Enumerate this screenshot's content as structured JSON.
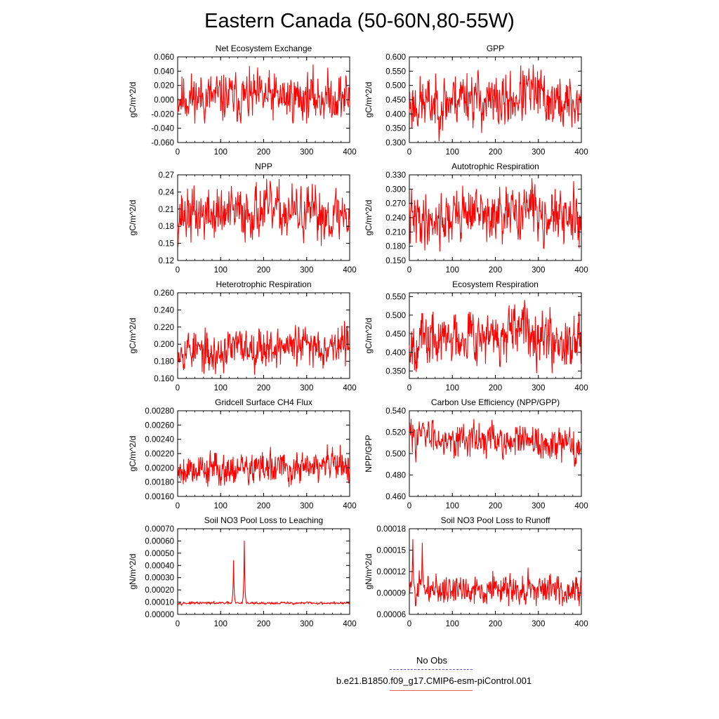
{
  "title": "Eastern Canada (50-60N,80-55W)",
  "legend": {
    "entries": [
      {
        "name": "No Obs",
        "color": "#5a5ae0",
        "style": "dashed"
      },
      {
        "name": "b.e21.B1850.f09_g17.CMIP6-esm-piControl.001",
        "color": "#e06060",
        "style": "solid"
      }
    ]
  },
  "series_color": "#ff0000",
  "chart_data": [
    {
      "type": "line",
      "title": "Net Ecosystem Exchange",
      "ylabel": "gC/m^2/d",
      "xlim": [
        0,
        400
      ],
      "ylim": [
        -0.06,
        0.06
      ],
      "xticks": [
        0,
        100,
        200,
        300,
        400
      ],
      "xticklabels": [
        "0",
        "100",
        "200",
        "300",
        "400"
      ],
      "yticks": [
        -0.06,
        -0.04,
        -0.02,
        0,
        0.02,
        0.04,
        0.06
      ],
      "yticklabels": [
        "-0.060",
        "-0.040",
        "-0.020",
        "0.000",
        "0.020",
        "0.040",
        "0.060"
      ],
      "pattern": {
        "base": 0.003,
        "trend": 0,
        "bumps": [],
        "noise": 0.016,
        "clampMin": -0.033,
        "clampMax": 0.058,
        "seed": 11
      }
    },
    {
      "type": "line",
      "title": "GPP",
      "ylabel": "gC/m^2/d",
      "xlim": [
        0,
        400
      ],
      "ylim": [
        0.3,
        0.6
      ],
      "xticks": [
        0,
        100,
        200,
        300,
        400
      ],
      "xticklabels": [
        "0",
        "100",
        "200",
        "300",
        "400"
      ],
      "yticks": [
        0.3,
        0.35,
        0.4,
        0.45,
        0.5,
        0.55,
        0.6
      ],
      "yticklabels": [
        "0.300",
        "0.350",
        "0.400",
        "0.450",
        "0.500",
        "0.550",
        "0.600"
      ],
      "pattern": {
        "base": 0.435,
        "trend": 0,
        "bumps": [
          [
            130,
            35,
            0.035
          ],
          [
            280,
            40,
            0.04
          ]
        ],
        "noise": 0.045,
        "clampMin": 0.305,
        "clampMax": 0.578,
        "seed": 23
      }
    },
    {
      "type": "line",
      "title": "NPP",
      "ylabel": "gC/m^2/d",
      "xlim": [
        0,
        400
      ],
      "ylim": [
        0.12,
        0.27
      ],
      "xticks": [
        0,
        100,
        200,
        300,
        400
      ],
      "xticklabels": [
        "0",
        "100",
        "200",
        "300",
        "400"
      ],
      "yticks": [
        0.12,
        0.15,
        0.18,
        0.21,
        0.24,
        0.27
      ],
      "yticklabels": [
        "0.12",
        "0.15",
        "0.18",
        "0.21",
        "0.24",
        "0.27"
      ],
      "pattern": {
        "base": 0.2,
        "trend": 0,
        "bumps": [
          [
            200,
            60,
            0.008
          ]
        ],
        "noise": 0.022,
        "clampMin": 0.135,
        "clampMax": 0.262,
        "seed": 37
      }
    },
    {
      "type": "line",
      "title": "Autotrophic Respiration",
      "ylabel": "gC/m^2/d",
      "xlim": [
        0,
        400
      ],
      "ylim": [
        0.15,
        0.33
      ],
      "xticks": [
        0,
        100,
        200,
        300,
        400
      ],
      "xticklabels": [
        "0",
        "100",
        "200",
        "300",
        "400"
      ],
      "yticks": [
        0.15,
        0.18,
        0.21,
        0.24,
        0.27,
        0.3,
        0.33
      ],
      "yticklabels": [
        "0.150",
        "0.180",
        "0.210",
        "0.240",
        "0.270",
        "0.300",
        "0.330"
      ],
      "pattern": {
        "base": 0.236,
        "trend": 0,
        "bumps": [
          [
            140,
            35,
            0.02
          ],
          [
            280,
            40,
            0.025
          ]
        ],
        "noise": 0.026,
        "clampMin": 0.165,
        "clampMax": 0.322,
        "seed": 41
      }
    },
    {
      "type": "line",
      "title": "Heterotrophic Respiration",
      "ylabel": "gC/m^2/d",
      "xlim": [
        0,
        400
      ],
      "ylim": [
        0.16,
        0.26
      ],
      "xticks": [
        0,
        100,
        200,
        300,
        400
      ],
      "xticklabels": [
        "0",
        "100",
        "200",
        "300",
        "400"
      ],
      "yticks": [
        0.16,
        0.18,
        0.2,
        0.22,
        0.24,
        0.26
      ],
      "yticklabels": [
        "0.160",
        "0.180",
        "0.200",
        "0.220",
        "0.240",
        "0.260"
      ],
      "pattern": {
        "base": 0.197,
        "trend": 1e-05,
        "bumps": [
          [
            80,
            30,
            -0.01
          ]
        ],
        "noise": 0.011,
        "clampMin": 0.161,
        "clampMax": 0.24,
        "seed": 53
      }
    },
    {
      "type": "line",
      "title": "Ecosystem Respiration",
      "ylabel": "gC/m^2/d",
      "xlim": [
        0,
        400
      ],
      "ylim": [
        0.33,
        0.56
      ],
      "xticks": [
        0,
        100,
        200,
        300,
        400
      ],
      "xticklabels": [
        "0",
        "100",
        "200",
        "300",
        "400"
      ],
      "yticks": [
        0.35,
        0.4,
        0.45,
        0.5,
        0.55
      ],
      "yticklabels": [
        "0.350",
        "0.400",
        "0.450",
        "0.500",
        "0.550"
      ],
      "pattern": {
        "base": 0.432,
        "trend": 0,
        "bumps": [
          [
            140,
            35,
            0.025
          ],
          [
            280,
            40,
            0.035
          ]
        ],
        "noise": 0.034,
        "clampMin": 0.345,
        "clampMax": 0.54,
        "seed": 67
      }
    },
    {
      "type": "line",
      "title": "Gridcell Surface CH4 Flux",
      "ylabel": "gC/m^2/d",
      "xlim": [
        0,
        400
      ],
      "ylim": [
        0.0016,
        0.0028
      ],
      "xticks": [
        0,
        100,
        200,
        300,
        400
      ],
      "xticklabels": [
        "0",
        "100",
        "200",
        "300",
        "400"
      ],
      "yticks": [
        0.0016,
        0.0018,
        0.002,
        0.0022,
        0.0024,
        0.0026,
        0.0028
      ],
      "yticklabels": [
        "0.00160",
        "0.00180",
        "0.00200",
        "0.00220",
        "0.00240",
        "0.00260",
        "0.00280"
      ],
      "pattern": {
        "base": 0.00199,
        "trend": 0,
        "bumps": [
          [
            360,
            50,
            5e-05
          ]
        ],
        "noise": 0.00011,
        "clampMin": 0.00161,
        "clampMax": 0.00265,
        "seed": 79
      }
    },
    {
      "type": "line",
      "title": "Carbon Use Efficiency (NPP/GPP)",
      "ylabel": "NPP/GPP",
      "xlim": [
        0,
        400
      ],
      "ylim": [
        0.46,
        0.54
      ],
      "xticks": [
        0,
        100,
        200,
        300,
        400
      ],
      "xticklabels": [
        "0",
        "100",
        "200",
        "300",
        "400"
      ],
      "yticks": [
        0.46,
        0.48,
        0.5,
        0.52,
        0.54
      ],
      "yticklabels": [
        "0.460",
        "0.480",
        "0.500",
        "0.520",
        "0.540"
      ],
      "pattern": {
        "base": 0.512,
        "trend": -3e-05,
        "bumps": [],
        "noise": 0.0075,
        "clampMin": 0.467,
        "clampMax": 0.532,
        "seed": 83
      }
    },
    {
      "type": "line",
      "title": "Soil NO3 Pool Loss to Leaching",
      "ylabel": "gN/m^2/d",
      "xlim": [
        0,
        400
      ],
      "ylim": [
        0,
        0.0007
      ],
      "xticks": [
        0,
        100,
        200,
        300,
        400
      ],
      "xticklabels": [
        "0",
        "100",
        "200",
        "300",
        "400"
      ],
      "yticks": [
        0,
        0.0001,
        0.0002,
        0.0003,
        0.0004,
        0.0005,
        0.0006,
        0.0007
      ],
      "yticklabels": [
        "0.00000",
        "0.00010",
        "0.00020",
        "0.00030",
        "0.00040",
        "0.00050",
        "0.00060",
        "0.00070"
      ],
      "pattern": {
        "base": 9.2e-05,
        "trend": 0,
        "bumps": [],
        "noise": 5e-06,
        "clampMin": 7e-05,
        "clampMax": 0.0007,
        "seed": 97,
        "spikes": [
          [
            130,
            0.00044
          ],
          [
            155,
            0.0006
          ]
        ]
      }
    },
    {
      "type": "line",
      "title": "Soil NO3 Pool Loss to Runoff",
      "ylabel": "gN/m^2/d",
      "xlim": [
        0,
        400
      ],
      "ylim": [
        6e-05,
        0.00018
      ],
      "xticks": [
        0,
        100,
        200,
        300,
        400
      ],
      "xticklabels": [
        "0",
        "100",
        "200",
        "300",
        "400"
      ],
      "yticks": [
        6e-05,
        9e-05,
        0.00012,
        0.00015,
        0.00018
      ],
      "yticklabels": [
        "0.00006",
        "0.00009",
        "0.00012",
        "0.00015",
        "0.00018"
      ],
      "pattern": {
        "base": 9.5e-05,
        "trend": 0,
        "bumps": [],
        "noise": 1e-05,
        "clampMin": 7.2e-05,
        "clampMax": 0.000165,
        "seed": 101,
        "spikes": [
          [
            8,
            0.000166
          ],
          [
            30,
            0.00016
          ]
        ]
      }
    }
  ]
}
